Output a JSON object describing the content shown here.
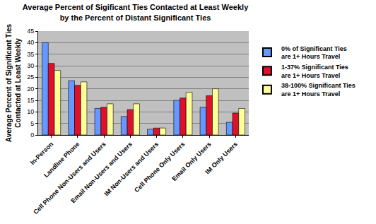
{
  "chart_data": {
    "type": "bar",
    "title": "Average Percent of Sigificant Ties Contacted at Least Weekly by the Percent of Distant Significant Ties",
    "y_label": "Average Percent of Significant Ties Contacted at Least Weekly",
    "categories": [
      "In-Person",
      "Landline Phone",
      "Cell Phone Non-Users and Users",
      "Email Non-Users and Users",
      "IM Non-Users and Users",
      "Cell Phone Only Users",
      "Email Only Users",
      "IM Only Users"
    ],
    "series": [
      {
        "name": "0% of Significant Ties are 1+ Hours Travel",
        "color": "#6699ff",
        "values": [
          40,
          23.5,
          11.5,
          8,
          2.5,
          15,
          12,
          5.5
        ]
      },
      {
        "name": "1-37% Significant Ties are 1+ Hours Travel",
        "color": "#e0102a",
        "values": [
          31,
          21.5,
          12,
          11,
          3,
          16,
          17,
          9.5
        ]
      },
      {
        "name": "38-100% Significant Ties are 1+ Hours Travel",
        "color": "#ffff99",
        "values": [
          28,
          23,
          13.5,
          13.5,
          3,
          18.5,
          20,
          11.5
        ]
      }
    ],
    "ylim": [
      0,
      45
    ],
    "yticks": [
      0,
      5,
      10,
      15,
      20,
      25,
      30,
      35,
      40,
      45
    ],
    "grid": true,
    "legend": "right"
  }
}
